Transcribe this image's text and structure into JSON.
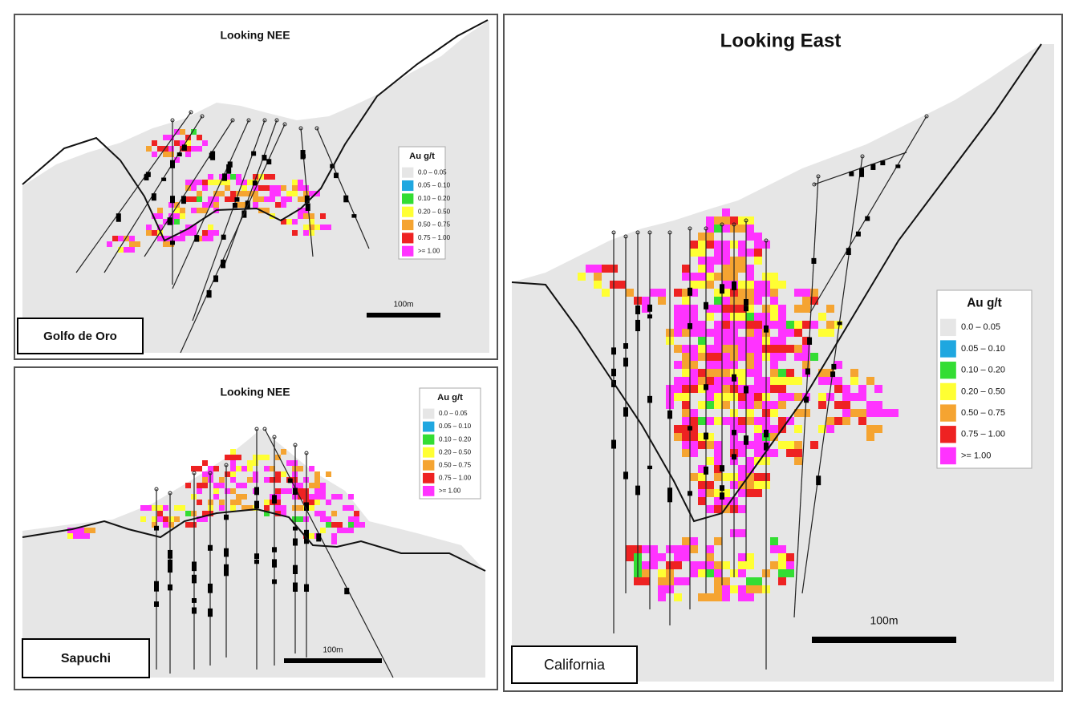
{
  "panels": [
    {
      "title": "Looking NEE",
      "name": "Golfo de Oro",
      "scale": "100m",
      "legend": {
        "title": "Au g/t",
        "items": [
          {
            "label": "0.0 – 0.05",
            "color": "#e6e6e6"
          },
          {
            "label": "0.05 – 0.10",
            "color": "#1fa7e0"
          },
          {
            "label": "0.10 – 0.20",
            "color": "#33dd33"
          },
          {
            "label": "0.20 – 0.50",
            "color": "#ffff33"
          },
          {
            "label": "0.50 – 0.75",
            "color": "#f5a431"
          },
          {
            "label": "0.75 – 1.00",
            "color": "#ee2222"
          },
          {
            "label": ">= 1.00",
            "color": "#ff33ff"
          }
        ]
      }
    },
    {
      "title": "Looking NEE",
      "name": "Sapuchi",
      "scale": "100m",
      "legend": {
        "title": "Au g/t",
        "items": [
          {
            "label": "0.0 – 0.05",
            "color": "#e6e6e6"
          },
          {
            "label": "0.05 – 0.10",
            "color": "#1fa7e0"
          },
          {
            "label": "0.10 – 0.20",
            "color": "#33dd33"
          },
          {
            "label": "0.20 – 0.50",
            "color": "#ffff33"
          },
          {
            "label": "0.50 – 0.75",
            "color": "#f5a431"
          },
          {
            "label": "0.75 – 1.00",
            "color": "#ee2222"
          },
          {
            "label": ">= 1.00",
            "color": "#ff33ff"
          }
        ]
      }
    },
    {
      "title": "Looking East",
      "name": "California",
      "scale": "100m",
      "legend": {
        "title": "Au g/t",
        "items": [
          {
            "label": "0.0 – 0.05",
            "color": "#e6e6e6"
          },
          {
            "label": "0.05 – 0.10",
            "color": "#1fa7e0"
          },
          {
            "label": "0.10 – 0.20",
            "color": "#33dd33"
          },
          {
            "label": "0.20 – 0.50",
            "color": "#ffff33"
          },
          {
            "label": "0.50 – 0.75",
            "color": "#f5a431"
          },
          {
            "label": "0.75 – 1.00",
            "color": "#ee2222"
          },
          {
            "label": ">= 1.00",
            "color": "#ff33ff"
          }
        ]
      }
    }
  ]
}
